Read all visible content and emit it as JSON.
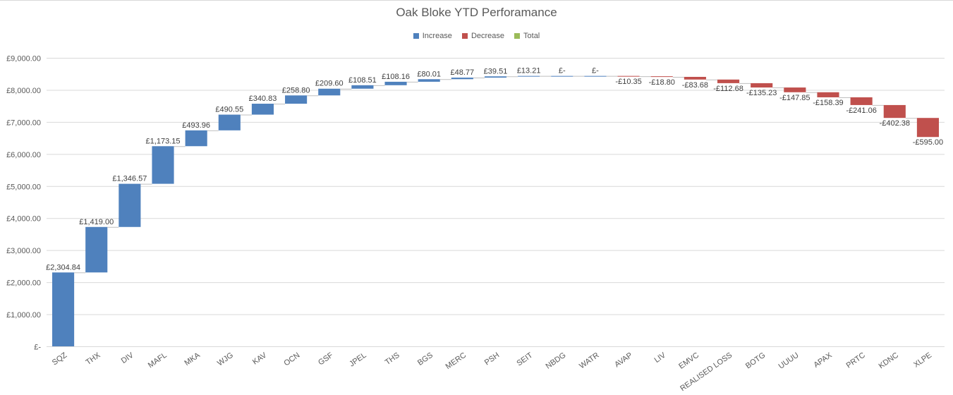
{
  "chart_data": {
    "type": "bar",
    "subtype": "waterfall",
    "title": "Oak Bloke YTD Perforamance",
    "xlabel": "",
    "ylabel": "",
    "ylim": [
      0,
      9000
    ],
    "yticks": [
      0,
      1000,
      2000,
      3000,
      4000,
      5000,
      6000,
      7000,
      8000,
      9000
    ],
    "ytick_labels": [
      "£-",
      "£1,000.00",
      "£2,000.00",
      "£3,000.00",
      "£4,000.00",
      "£5,000.00",
      "£6,000.00",
      "£7,000.00",
      "£8,000.00",
      "£9,000.00"
    ],
    "grid": true,
    "legend_position": "top",
    "legend": [
      {
        "name": "Increase",
        "color": "#4f81bd"
      },
      {
        "name": "Decrease",
        "color": "#c0504d"
      },
      {
        "name": "Total",
        "color": "#9bbb59"
      }
    ],
    "categories": [
      "SQZ",
      "THX",
      "DIV",
      "MAFL",
      "MKA",
      "WJG",
      "KAV",
      "OCN",
      "GSF",
      "JPEL",
      "THS",
      "BGS",
      "MERC",
      "PSH",
      "SEIT",
      "NBDG",
      "WATR",
      "AVAP",
      "LIV",
      "EMVC",
      "REALISED LOSS",
      "BOTG",
      "UUUU",
      "APAX",
      "PRTC",
      "KDNC",
      "XLPE"
    ],
    "values": [
      2304.84,
      1419.0,
      1346.57,
      1173.15,
      493.96,
      490.55,
      340.83,
      258.8,
      209.6,
      108.51,
      108.16,
      80.01,
      48.77,
      39.51,
      13.21,
      0,
      0,
      -10.35,
      -18.8,
      -83.68,
      -112.68,
      -135.23,
      -147.85,
      -158.39,
      -241.06,
      -402.38,
      -595.0
    ],
    "data_labels": [
      "£2,304.84",
      "£1,419.00",
      "£1,346.57",
      "£1,173.15",
      "£493.96",
      "£490.55",
      "£340.83",
      "£258.80",
      "£209.60",
      "£108.51",
      "£108.16",
      "£80.01",
      "£48.77",
      "£39.51",
      "£13.21",
      "£-",
      "£-",
      "-£10.35",
      "-£18.80",
      "-£83.68",
      "-£112.68",
      "-£135.23",
      "-£147.85",
      "-£158.39",
      "-£241.06",
      "-£402.38",
      "-£595.00"
    ]
  }
}
